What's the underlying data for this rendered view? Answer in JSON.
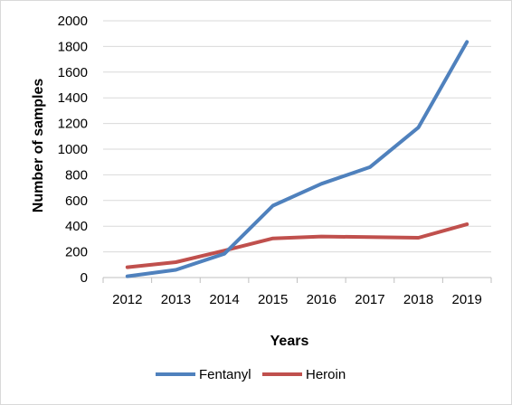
{
  "chart_data": {
    "type": "line",
    "xlabel": "Years",
    "ylabel": "Number of samples",
    "categories": [
      "2012",
      "2013",
      "2014",
      "2015",
      "2016",
      "2017",
      "2018",
      "2019"
    ],
    "ylim": [
      0,
      2000
    ],
    "yticks": [
      0,
      200,
      400,
      600,
      800,
      1000,
      1200,
      1400,
      1600,
      1800,
      2000
    ],
    "grid": true,
    "legend_position": "bottom",
    "series": [
      {
        "name": "Fentanyl",
        "color": "#4f81bd",
        "values": [
          10,
          60,
          185,
          560,
          730,
          860,
          1170,
          1835
        ]
      },
      {
        "name": "Heroin",
        "color": "#c0504d",
        "values": [
          80,
          120,
          210,
          305,
          320,
          315,
          310,
          415
        ]
      }
    ]
  }
}
